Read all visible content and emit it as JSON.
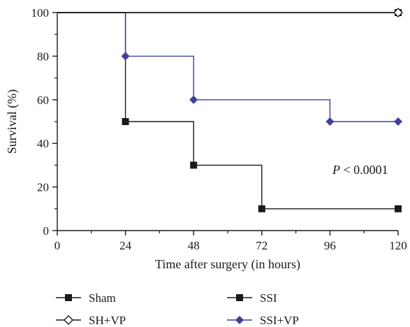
{
  "chart_data": {
    "type": "line",
    "title": "",
    "xlabel": "Time after surgery (in hours)",
    "ylabel": "Survival (%)",
    "xlim": [
      0,
      120
    ],
    "ylim": [
      0,
      100
    ],
    "x_ticks": [
      0,
      24,
      48,
      72,
      96,
      120
    ],
    "y_ticks": [
      0,
      20,
      40,
      60,
      80,
      100
    ],
    "x_tick_labels": [
      "0",
      "24",
      "48",
      "72",
      "96",
      "120"
    ],
    "y_tick_labels": [
      "0",
      "20",
      "40",
      "60",
      "80",
      "100"
    ],
    "step": true,
    "grid": false,
    "legend_position": "bottom",
    "annotation": {
      "prefix": "P",
      "text": " < 0.0001"
    },
    "series": [
      {
        "name": "Sham",
        "color": "#1a1a1a",
        "marker": "filled-square",
        "x": [
          0,
          120
        ],
        "y": [
          100,
          100
        ],
        "markers_at": [
          120
        ]
      },
      {
        "name": "SH+VP",
        "color": "#1a1a1a",
        "marker": "open-diamond",
        "x": [
          0,
          120
        ],
        "y": [
          100,
          100
        ],
        "markers_at": [
          120
        ]
      },
      {
        "name": "SSI",
        "color": "#1a1a1a",
        "marker": "filled-square",
        "x": [
          0,
          24,
          48,
          72,
          120
        ],
        "y": [
          100,
          50,
          30,
          10,
          10
        ],
        "markers_at": [
          24,
          48,
          72,
          120
        ]
      },
      {
        "name": "SSI+VP",
        "color": "#3f3f9b",
        "marker": "filled-diamond",
        "x": [
          0,
          24,
          48,
          96,
          120
        ],
        "y": [
          100,
          80,
          60,
          50,
          50
        ],
        "markers_at": [
          24,
          48,
          96,
          120
        ]
      }
    ]
  }
}
